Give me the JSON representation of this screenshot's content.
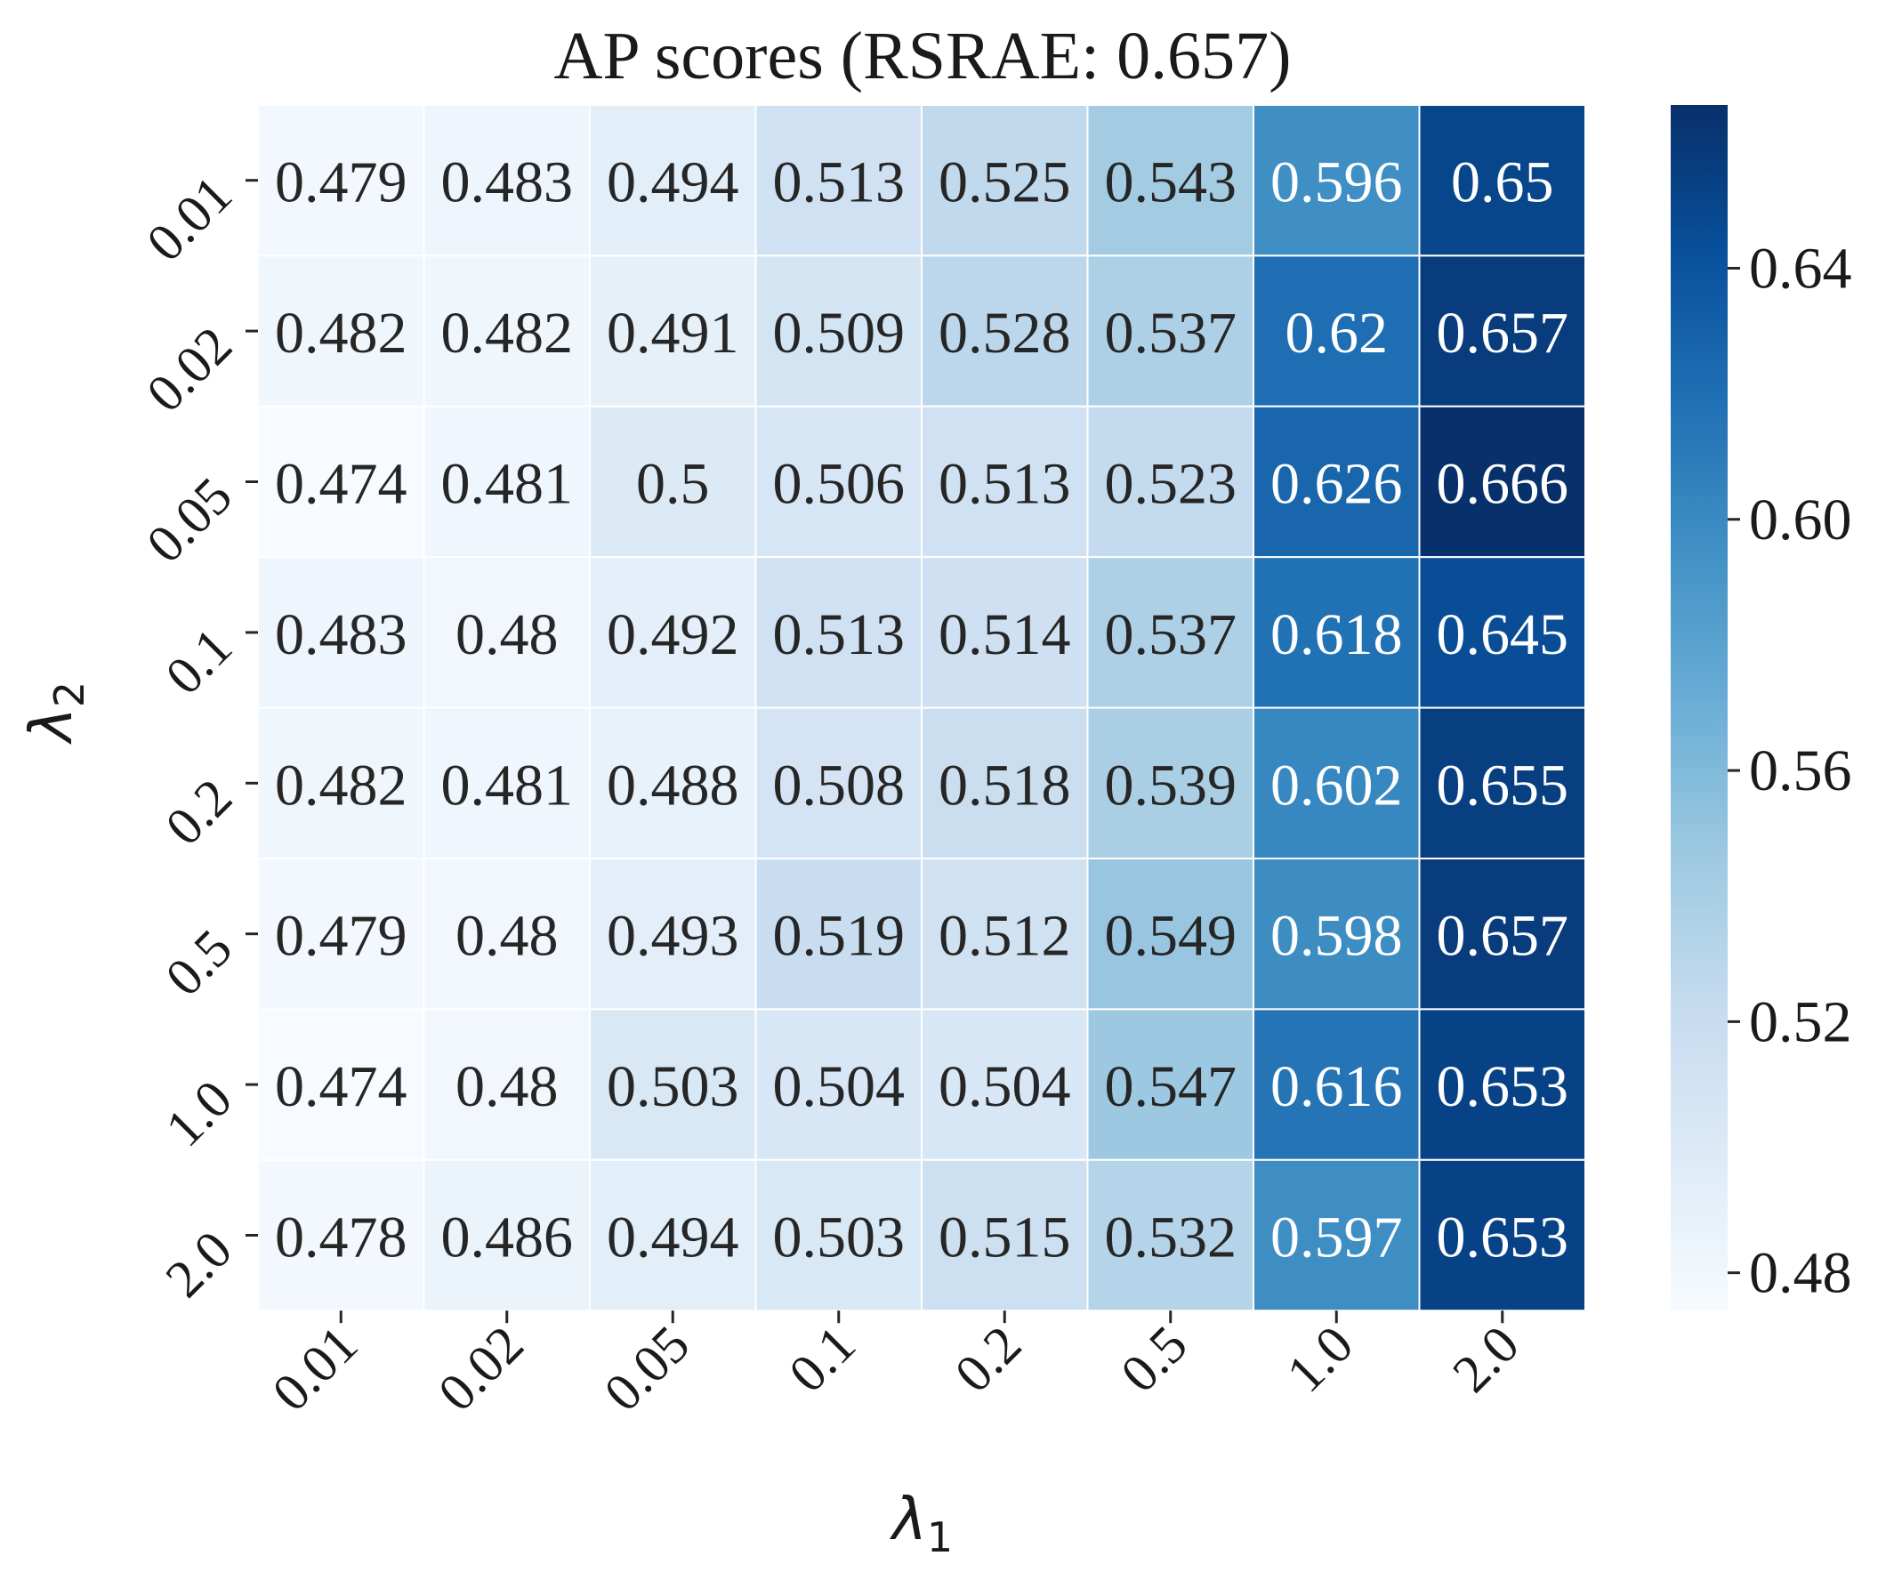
{
  "chart_data": {
    "type": "heatmap",
    "title": "AP scores (RSRAE: 0.657)",
    "xlabel_symbol": "λ",
    "xlabel_sub": "1",
    "ylabel_symbol": "λ",
    "ylabel_sub": "2",
    "x_categories": [
      "0.01",
      "0.02",
      "0.05",
      "0.1",
      "0.2",
      "0.5",
      "1.0",
      "2.0"
    ],
    "y_categories": [
      "0.01",
      "0.02",
      "0.05",
      "0.1",
      "0.2",
      "0.5",
      "1.0",
      "2.0"
    ],
    "values": [
      [
        0.479,
        0.483,
        0.494,
        0.513,
        0.525,
        0.543,
        0.596,
        0.65
      ],
      [
        0.482,
        0.482,
        0.491,
        0.509,
        0.528,
        0.537,
        0.62,
        0.657
      ],
      [
        0.474,
        0.481,
        0.5,
        0.506,
        0.513,
        0.523,
        0.626,
        0.666
      ],
      [
        0.483,
        0.48,
        0.492,
        0.513,
        0.514,
        0.537,
        0.618,
        0.645
      ],
      [
        0.482,
        0.481,
        0.488,
        0.508,
        0.518,
        0.539,
        0.602,
        0.655
      ],
      [
        0.479,
        0.48,
        0.493,
        0.519,
        0.512,
        0.549,
        0.598,
        0.657
      ],
      [
        0.474,
        0.48,
        0.503,
        0.504,
        0.504,
        0.547,
        0.616,
        0.653
      ],
      [
        0.478,
        0.486,
        0.494,
        0.503,
        0.515,
        0.532,
        0.597,
        0.653
      ]
    ],
    "colormap": "Blues",
    "vmin": 0.474,
    "vmax": 0.666,
    "colorbar_ticks": [
      0.48,
      0.52,
      0.56,
      0.6,
      0.64
    ],
    "colorbar_tick_labels": [
      "0.48",
      "0.52",
      "0.56",
      "0.60",
      "0.64"
    ],
    "annotation_colors": {
      "dark_text": "#262626",
      "light_text": "#ffffff"
    },
    "grid_line_color": "#ffffff"
  }
}
